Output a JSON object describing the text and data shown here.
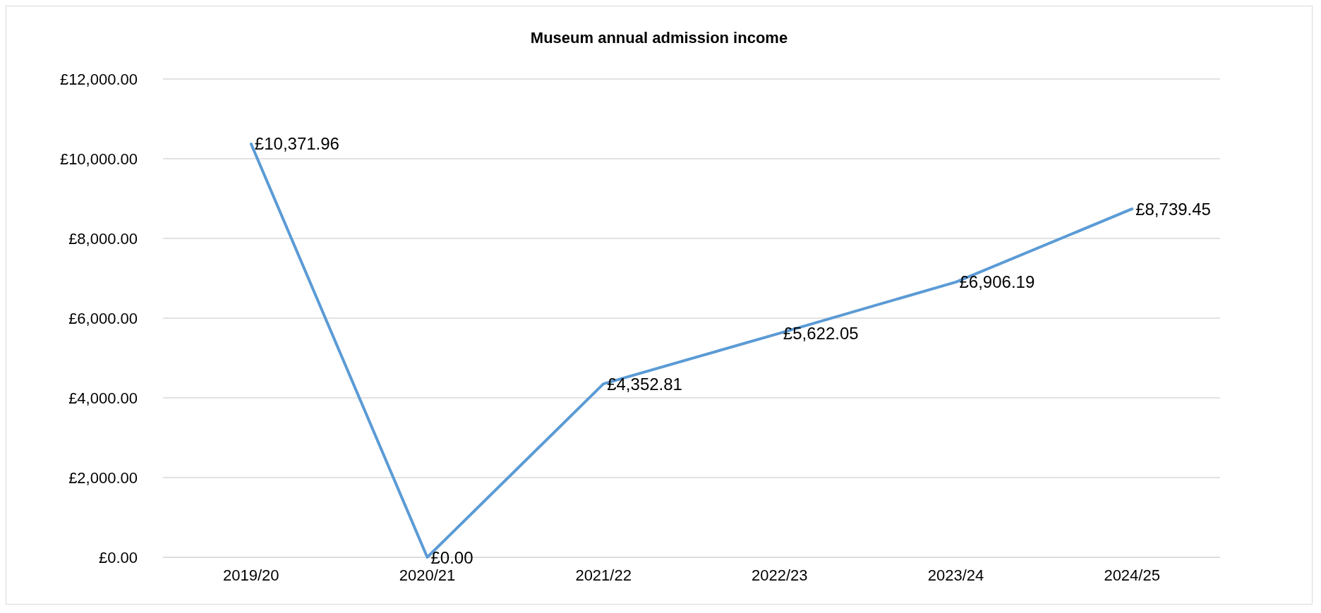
{
  "chart_data": {
    "type": "line",
    "title": "Museum annual admission income",
    "categories": [
      "2019/20",
      "2020/21",
      "2021/22",
      "2022/23",
      "2023/24",
      "2024/25"
    ],
    "series": [
      {
        "color": "#5b9bd5",
        "values": [
          10371.96,
          0,
          4352.81,
          5622.05,
          6906.19,
          8739.45
        ],
        "value_labels": [
          "£10,371.96",
          "£0.00",
          "£4,352.81",
          "£5,622.05",
          "£6,906.19",
          "£8,739.45"
        ]
      }
    ],
    "ylim": [
      0,
      12000
    ],
    "yticks": [
      {
        "value": 0,
        "label": "£0.00"
      },
      {
        "value": 2000,
        "label": "£2,000.00"
      },
      {
        "value": 4000,
        "label": "£4,000.00"
      },
      {
        "value": 6000,
        "label": "£6,000.00"
      },
      {
        "value": 8000,
        "label": "£8,000.00"
      },
      {
        "value": 10000,
        "label": "£10,000.00"
      },
      {
        "value": 12000,
        "label": "£12,000.00"
      }
    ],
    "grid": "y",
    "marker": "none",
    "line_style": "solid"
  }
}
